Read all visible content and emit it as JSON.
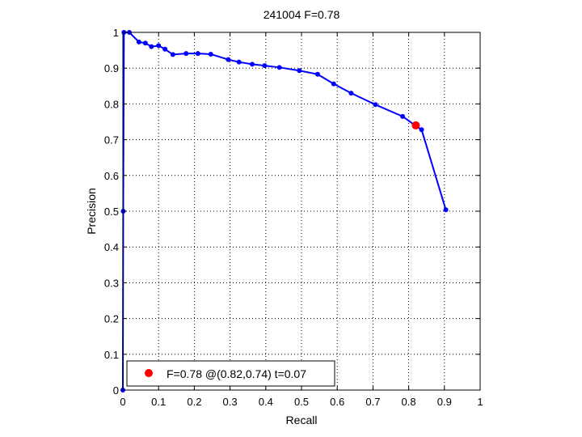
{
  "chart_data": {
    "type": "line",
    "title": "241004 F=0.78",
    "xlabel": "Recall",
    "ylabel": "Precision",
    "xlim": [
      0,
      1
    ],
    "ylim": [
      0,
      1
    ],
    "grid": true,
    "xticks": [
      0,
      0.1,
      0.2,
      0.3,
      0.4,
      0.5,
      0.6,
      0.7,
      0.8,
      0.9,
      1
    ],
    "yticks": [
      0,
      0.1,
      0.2,
      0.3,
      0.4,
      0.5,
      0.6,
      0.7,
      0.8,
      0.9,
      1
    ],
    "xtick_labels": [
      "0",
      "0.1",
      "0.2",
      "0.3",
      "0.4",
      "0.5",
      "0.6",
      "0.7",
      "0.8",
      "0.9",
      "1"
    ],
    "ytick_labels": [
      "0",
      "0.1",
      "0.2",
      "0.3",
      "0.4",
      "0.5",
      "0.6",
      "0.7",
      "0.8",
      "0.9",
      "1"
    ],
    "series": [
      {
        "color": "#0000ff",
        "marker": "dot",
        "x": [
          0,
          0.001,
          0.003,
          0.018,
          0.045,
          0.063,
          0.08,
          0.1,
          0.118,
          0.14,
          0.177,
          0.21,
          0.246,
          0.295,
          0.325,
          0.362,
          0.397,
          0.438,
          0.494,
          0.545,
          0.59,
          0.639,
          0.707,
          0.783,
          0.818,
          0.836,
          0.904
        ],
        "y": [
          0,
          0.5,
          1.0,
          1.0,
          0.973,
          0.97,
          0.96,
          0.963,
          0.953,
          0.938,
          0.941,
          0.941,
          0.939,
          0.924,
          0.917,
          0.911,
          0.907,
          0.902,
          0.893,
          0.883,
          0.856,
          0.83,
          0.798,
          0.765,
          0.74,
          0.728,
          0.504
        ]
      }
    ],
    "highlight_point": {
      "x": 0.82,
      "y": 0.74,
      "color": "#ff0000"
    },
    "legend": {
      "location": "bottom-left",
      "entries": [
        {
          "label": "F=0.78 @(0.82,0.74) t=0.07",
          "color": "#ff0000",
          "marker": "dot"
        }
      ]
    }
  }
}
